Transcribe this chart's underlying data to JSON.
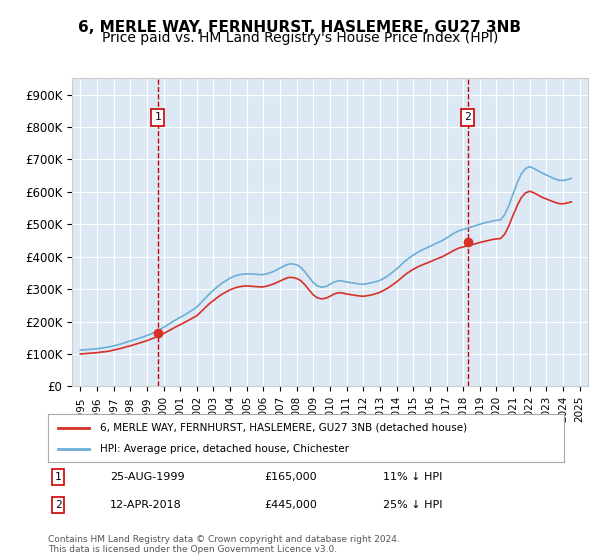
{
  "title": "6, MERLE WAY, FERNHURST, HASLEMERE, GU27 3NB",
  "subtitle": "Price paid vs. HM Land Registry's House Price Index (HPI)",
  "title_fontsize": 11,
  "subtitle_fontsize": 10,
  "ylabel_format": "£{0}K",
  "yticks": [
    0,
    100000,
    200000,
    300000,
    400000,
    500000,
    600000,
    700000,
    800000,
    900000
  ],
  "ytick_labels": [
    "£0",
    "£100K",
    "£200K",
    "£300K",
    "£400K",
    "£500K",
    "£600K",
    "£700K",
    "£800K",
    "£900K"
  ],
  "ylim": [
    0,
    950000
  ],
  "xlim_start": 1994.5,
  "xlim_end": 2025.5,
  "hpi_color": "#6baed6",
  "price_color": "#d73027",
  "dashed_line_color": "#cc0000",
  "background_color": "#dce9f5",
  "plot_bg": "#dce9f5",
  "grid_color": "#ffffff",
  "legend_label_red": "6, MERLE WAY, FERNHURST, HASLEMERE, GU27 3NB (detached house)",
  "legend_label_blue": "HPI: Average price, detached house, Chichester",
  "point1_year": 1999.647,
  "point1_value": 165000,
  "point1_label": "1",
  "point1_date": "25-AUG-1999",
  "point1_price": "£165,000",
  "point1_note": "11% ↓ HPI",
  "point2_year": 2018.278,
  "point2_value": 445000,
  "point2_label": "2",
  "point2_date": "12-APR-2018",
  "point2_price": "£445,000",
  "point2_note": "25% ↓ HPI",
  "xtick_years": [
    1995,
    1996,
    1997,
    1998,
    1999,
    2000,
    2001,
    2002,
    2003,
    2004,
    2005,
    2006,
    2007,
    2008,
    2009,
    2010,
    2011,
    2012,
    2013,
    2014,
    2015,
    2016,
    2017,
    2018,
    2019,
    2020,
    2021,
    2022,
    2023,
    2024,
    2025
  ],
  "copyright_text": "Contains HM Land Registry data © Crown copyright and database right 2024.\nThis data is licensed under the Open Government Licence v3.0.",
  "hpi_data": {
    "years": [
      1995.0,
      1995.25,
      1995.5,
      1995.75,
      1996.0,
      1996.25,
      1996.5,
      1996.75,
      1997.0,
      1997.25,
      1997.5,
      1997.75,
      1998.0,
      1998.25,
      1998.5,
      1998.75,
      1999.0,
      1999.25,
      1999.5,
      1999.75,
      2000.0,
      2000.25,
      2000.5,
      2000.75,
      2001.0,
      2001.25,
      2001.5,
      2001.75,
      2002.0,
      2002.25,
      2002.5,
      2002.75,
      2003.0,
      2003.25,
      2003.5,
      2003.75,
      2004.0,
      2004.25,
      2004.5,
      2004.75,
      2005.0,
      2005.25,
      2005.5,
      2005.75,
      2006.0,
      2006.25,
      2006.5,
      2006.75,
      2007.0,
      2007.25,
      2007.5,
      2007.75,
      2008.0,
      2008.25,
      2008.5,
      2008.75,
      2009.0,
      2009.25,
      2009.5,
      2009.75,
      2010.0,
      2010.25,
      2010.5,
      2010.75,
      2011.0,
      2011.25,
      2011.5,
      2011.75,
      2012.0,
      2012.25,
      2012.5,
      2012.75,
      2013.0,
      2013.25,
      2013.5,
      2013.75,
      2014.0,
      2014.25,
      2014.5,
      2014.75,
      2015.0,
      2015.25,
      2015.5,
      2015.75,
      2016.0,
      2016.25,
      2016.5,
      2016.75,
      2017.0,
      2017.25,
      2017.5,
      2017.75,
      2018.0,
      2018.25,
      2018.5,
      2018.75,
      2019.0,
      2019.25,
      2019.5,
      2019.75,
      2020.0,
      2020.25,
      2020.5,
      2020.75,
      2021.0,
      2021.25,
      2021.5,
      2021.75,
      2022.0,
      2022.25,
      2022.5,
      2022.75,
      2023.0,
      2023.25,
      2023.5,
      2023.75,
      2024.0,
      2024.25,
      2024.5
    ],
    "values": [
      112000,
      113000,
      114000,
      115000,
      116000,
      118000,
      120000,
      122000,
      125000,
      128000,
      132000,
      136000,
      140000,
      144000,
      148000,
      152000,
      157000,
      162000,
      168000,
      175000,
      182000,
      190000,
      198000,
      206000,
      213000,
      220000,
      228000,
      236000,
      245000,
      258000,
      272000,
      285000,
      297000,
      308000,
      318000,
      326000,
      334000,
      340000,
      344000,
      346000,
      347000,
      347000,
      346000,
      345000,
      345000,
      348000,
      352000,
      358000,
      365000,
      372000,
      377000,
      378000,
      375000,
      367000,
      353000,
      336000,
      320000,
      310000,
      306000,
      308000,
      315000,
      322000,
      326000,
      325000,
      322000,
      320000,
      318000,
      316000,
      315000,
      317000,
      320000,
      323000,
      327000,
      334000,
      342000,
      352000,
      362000,
      374000,
      386000,
      396000,
      405000,
      413000,
      420000,
      426000,
      432000,
      438000,
      444000,
      450000,
      458000,
      466000,
      474000,
      480000,
      484000,
      488000,
      492000,
      496000,
      500000,
      504000,
      507000,
      510000,
      512000,
      514000,
      530000,
      558000,
      594000,
      628000,
      656000,
      672000,
      678000,
      672000,
      665000,
      658000,
      652000,
      646000,
      640000,
      636000,
      635000,
      638000,
      642000
    ]
  },
  "price_data": {
    "years": [
      1995.0,
      1995.25,
      1995.5,
      1995.75,
      1996.0,
      1996.25,
      1996.5,
      1996.75,
      1997.0,
      1997.25,
      1997.5,
      1997.75,
      1998.0,
      1998.25,
      1998.5,
      1998.75,
      1999.0,
      1999.25,
      1999.5,
      1999.75,
      2000.0,
      2000.25,
      2000.5,
      2000.75,
      2001.0,
      2001.25,
      2001.5,
      2001.75,
      2002.0,
      2002.25,
      2002.5,
      2002.75,
      2003.0,
      2003.25,
      2003.5,
      2003.75,
      2004.0,
      2004.25,
      2004.5,
      2004.75,
      2005.0,
      2005.25,
      2005.5,
      2005.75,
      2006.0,
      2006.25,
      2006.5,
      2006.75,
      2007.0,
      2007.25,
      2007.5,
      2007.75,
      2008.0,
      2008.25,
      2008.5,
      2008.75,
      2009.0,
      2009.25,
      2009.5,
      2009.75,
      2010.0,
      2010.25,
      2010.5,
      2010.75,
      2011.0,
      2011.25,
      2011.5,
      2011.75,
      2012.0,
      2012.25,
      2012.5,
      2012.75,
      2013.0,
      2013.25,
      2013.5,
      2013.75,
      2014.0,
      2014.25,
      2014.5,
      2014.75,
      2015.0,
      2015.25,
      2015.5,
      2015.75,
      2016.0,
      2016.25,
      2016.5,
      2016.75,
      2017.0,
      2017.25,
      2017.5,
      2017.75,
      2018.0,
      2018.25,
      2018.5,
      2018.75,
      2019.0,
      2019.25,
      2019.5,
      2019.75,
      2020.0,
      2020.25,
      2020.5,
      2020.75,
      2021.0,
      2021.25,
      2021.5,
      2021.75,
      2022.0,
      2022.25,
      2022.5,
      2022.75,
      2023.0,
      2023.25,
      2023.5,
      2023.75,
      2024.0,
      2024.25,
      2024.5
    ],
    "values": [
      100000,
      101000,
      102000,
      103000,
      104000,
      106000,
      107000,
      109000,
      112000,
      115000,
      118000,
      122000,
      125000,
      129000,
      133000,
      137000,
      141000,
      146000,
      151000,
      157000,
      163000,
      170000,
      177000,
      184000,
      190000,
      197000,
      204000,
      211000,
      218000,
      230000,
      243000,
      255000,
      265000,
      275000,
      284000,
      291000,
      298000,
      303000,
      307000,
      309000,
      310000,
      309000,
      308000,
      307000,
      307000,
      310000,
      314000,
      319000,
      325000,
      331000,
      336000,
      336000,
      333000,
      326000,
      313000,
      297000,
      282000,
      273000,
      270000,
      272000,
      278000,
      285000,
      289000,
      288000,
      285000,
      283000,
      281000,
      279000,
      278000,
      280000,
      282000,
      286000,
      290000,
      297000,
      304000,
      313000,
      322000,
      333000,
      344000,
      353000,
      361000,
      368000,
      374000,
      379000,
      384000,
      390000,
      395000,
      400000,
      407000,
      414000,
      421000,
      427000,
      430000,
      434000,
      437000,
      440000,
      444000,
      447000,
      450000,
      453000,
      455000,
      456000,
      470000,
      496000,
      528000,
      558000,
      583000,
      597000,
      602000,
      597000,
      590000,
      583000,
      578000,
      573000,
      568000,
      564000,
      563000,
      566000,
      569000
    ]
  }
}
